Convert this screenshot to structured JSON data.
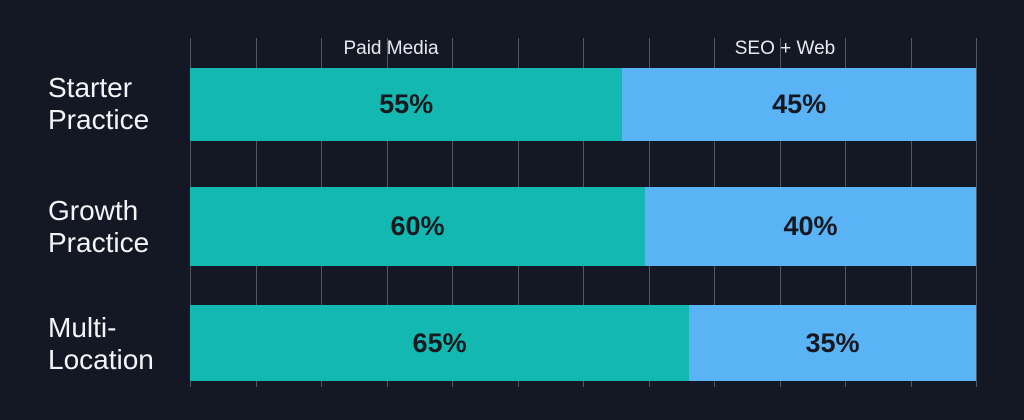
{
  "chart_data": {
    "type": "bar",
    "orientation": "horizontal",
    "stacked": true,
    "title": "",
    "xlabel": "",
    "ylabel": "",
    "categories": [
      "Starter Practice",
      "Growth Practice",
      "Multi-Location"
    ],
    "series": [
      {
        "name": "Paid Media",
        "values": [
          55,
          60,
          65
        ],
        "color": "#13b9b0"
      },
      {
        "name": "SEO + Web",
        "values": [
          45,
          40,
          35
        ],
        "color": "#5ab3f5"
      }
    ],
    "data_labels": [
      [
        "55%",
        "45%"
      ],
      [
        "60%",
        "40%"
      ],
      [
        "65%",
        "35%"
      ]
    ],
    "xlim": [
      0,
      100
    ],
    "grid": true,
    "legend_position": "top"
  },
  "labels": {
    "series_a": "Paid Media",
    "series_b": "SEO + Web",
    "cat0": "Starter\nPractice",
    "cat1": "Growth\nPractice",
    "cat2": "Multi-\nLocation",
    "v00": "55%",
    "v01": "45%",
    "v10": "60%",
    "v11": "40%",
    "v20": "65%",
    "v21": "35%"
  }
}
